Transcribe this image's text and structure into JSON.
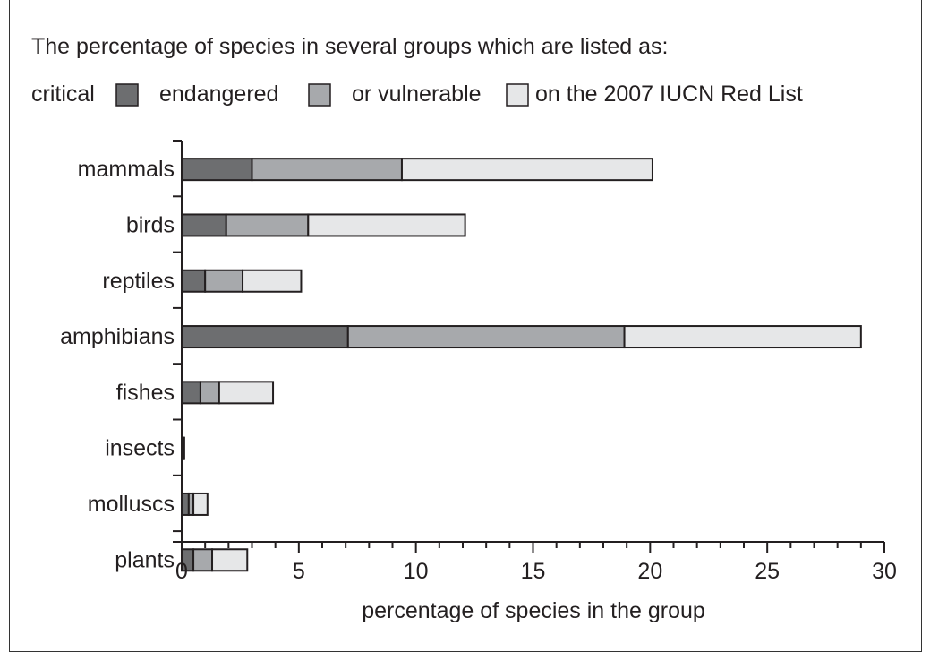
{
  "chart_data": {
    "type": "bar",
    "orientation": "horizontal",
    "stacked": true,
    "title": "The percentage of species in several groups which are listed as:",
    "legend_prefix": "critical",
    "legend_suffix": "on the 2007 IUCN Red List",
    "legend_placement": "top",
    "categories": [
      "mammals",
      "birds",
      "reptiles",
      "amphibians",
      "fishes",
      "insects",
      "molluscs",
      "plants"
    ],
    "series": [
      {
        "name": "critical",
        "color": "#6d6e70",
        "values": [
          3.0,
          1.9,
          1.0,
          7.1,
          0.8,
          0.05,
          0.3,
          0.5
        ]
      },
      {
        "name": "endangered",
        "color": "#a7a9ac",
        "values": [
          6.4,
          3.5,
          1.6,
          11.8,
          0.8,
          0.03,
          0.2,
          0.8
        ]
      },
      {
        "name": "or vulnerable",
        "color": "#e6e7e8",
        "values": [
          10.7,
          6.7,
          2.5,
          10.1,
          2.3,
          0.02,
          0.6,
          1.5
        ]
      }
    ],
    "xlabel": "percentage of species in the group",
    "ylabel": "",
    "xlim": [
      0,
      30
    ],
    "xticks": [
      0,
      5,
      10,
      15,
      20,
      25,
      30
    ],
    "grid": false
  }
}
